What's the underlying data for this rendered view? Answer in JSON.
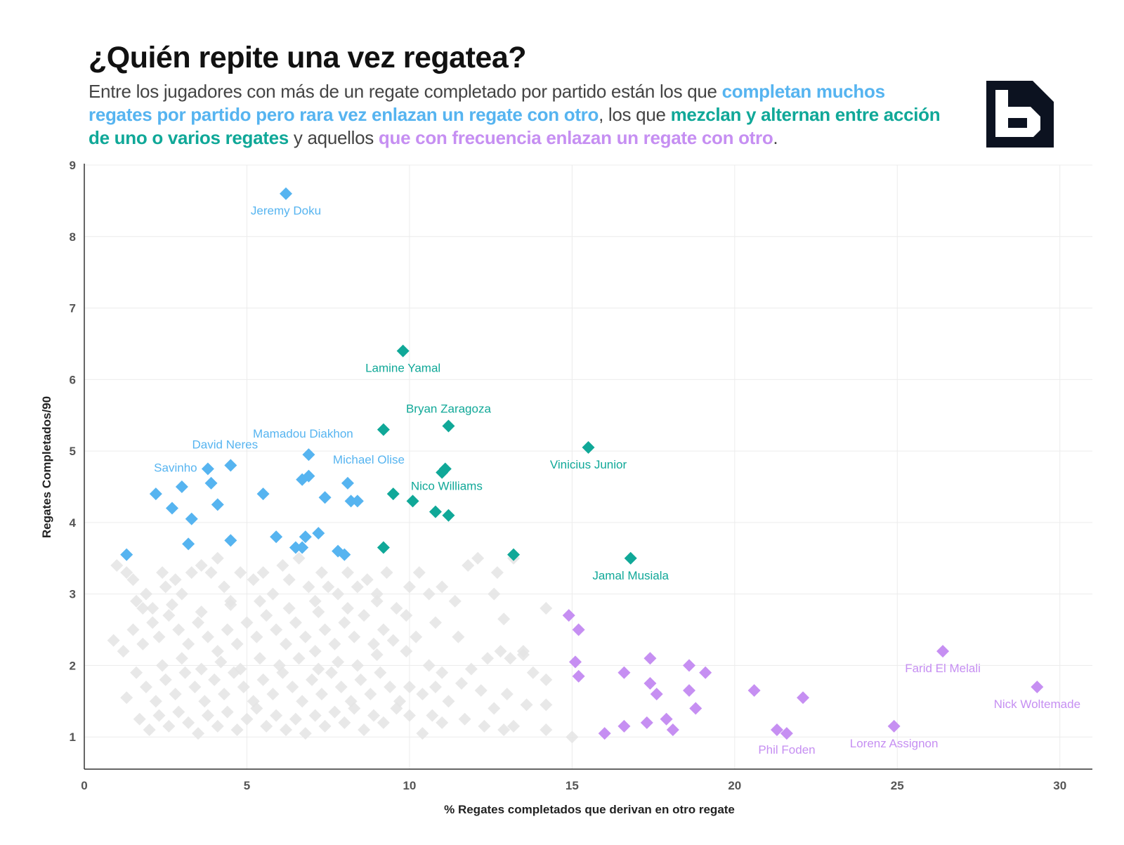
{
  "title": "¿Quién repite una vez regatea?",
  "subtitle": {
    "part1": "Entre los jugadores con más de un regate completado por partido están los que ",
    "hl1": "completan muchos regates por partido pero rara vez enlazan un regate con otro",
    "part2": ", los que ",
    "hl2": "mezclan y alternan entre acción de uno o varios regates",
    "part3": " y aquellos ",
    "hl3": "que con frecuencia enlazan un regate con otro",
    "part4": "."
  },
  "colors": {
    "blue": "#56b4f0",
    "teal": "#10a898",
    "purple": "#c68ff2",
    "gray": "#e4e4e4",
    "logo_bg": "#0c1220"
  },
  "chart_data": {
    "type": "scatter",
    "xlabel": "% Regates completados que derivan en  otro regate",
    "ylabel": "Regates Completados/90",
    "xlim": [
      0,
      31
    ],
    "ylim": [
      0.55,
      9.0
    ],
    "xticks": [
      0,
      5,
      10,
      15,
      20,
      25,
      30
    ],
    "yticks": [
      1,
      2,
      3,
      4,
      5,
      6,
      7,
      8,
      9
    ],
    "grid": true,
    "series": [
      {
        "color": "blue",
        "points": [
          {
            "x": 6.2,
            "y": 8.6,
            "label": "Jeremy Doku"
          },
          {
            "x": 6.9,
            "y": 4.95,
            "label": "Mamadou Diakhon"
          },
          {
            "x": 4.5,
            "y": 4.8,
            "label": "David Neres"
          },
          {
            "x": 3.8,
            "y": 4.75,
            "label": "Savinho"
          },
          {
            "x": 8.1,
            "y": 4.55,
            "label": "Michael Olise"
          },
          {
            "x": 6.9,
            "y": 4.65
          },
          {
            "x": 6.7,
            "y": 4.6
          },
          {
            "x": 2.2,
            "y": 4.4
          },
          {
            "x": 3.0,
            "y": 4.5
          },
          {
            "x": 3.9,
            "y": 4.55
          },
          {
            "x": 5.5,
            "y": 4.4
          },
          {
            "x": 7.4,
            "y": 4.35
          },
          {
            "x": 8.2,
            "y": 4.3
          },
          {
            "x": 8.4,
            "y": 4.3
          },
          {
            "x": 2.7,
            "y": 4.2
          },
          {
            "x": 4.1,
            "y": 4.25
          },
          {
            "x": 3.3,
            "y": 4.05
          },
          {
            "x": 4.5,
            "y": 3.75
          },
          {
            "x": 5.9,
            "y": 3.8
          },
          {
            "x": 6.8,
            "y": 3.8
          },
          {
            "x": 7.2,
            "y": 3.85
          },
          {
            "x": 6.5,
            "y": 3.65
          },
          {
            "x": 6.7,
            "y": 3.65
          },
          {
            "x": 3.2,
            "y": 3.7
          },
          {
            "x": 7.8,
            "y": 3.6
          },
          {
            "x": 8.0,
            "y": 3.55
          },
          {
            "x": 1.3,
            "y": 3.55
          }
        ]
      },
      {
        "color": "teal",
        "points": [
          {
            "x": 9.8,
            "y": 6.4,
            "label": "Lamine Yamal"
          },
          {
            "x": 11.2,
            "y": 5.35,
            "label": "Bryan Zaragoza"
          },
          {
            "x": 15.5,
            "y": 5.05,
            "label": "Vinicius Junior"
          },
          {
            "x": 11.1,
            "y": 4.75,
            "label": "Nico Williams"
          },
          {
            "x": 16.8,
            "y": 3.5,
            "label": "Jamal Musiala"
          },
          {
            "x": 9.2,
            "y": 5.3
          },
          {
            "x": 11.0,
            "y": 4.7
          },
          {
            "x": 9.5,
            "y": 4.4
          },
          {
            "x": 10.1,
            "y": 4.3
          },
          {
            "x": 10.8,
            "y": 4.15
          },
          {
            "x": 11.2,
            "y": 4.1
          },
          {
            "x": 9.2,
            "y": 3.65
          },
          {
            "x": 13.2,
            "y": 3.55
          }
        ]
      },
      {
        "color": "purple",
        "points": [
          {
            "x": 26.4,
            "y": 2.2,
            "label": "Farid El Melali"
          },
          {
            "x": 29.3,
            "y": 1.7,
            "label": "Nick Woltemade"
          },
          {
            "x": 21.3,
            "y": 1.1,
            "label": "Phil Foden"
          },
          {
            "x": 24.9,
            "y": 1.15,
            "label": "Lorenz Assignon"
          },
          {
            "x": 14.9,
            "y": 2.7
          },
          {
            "x": 15.2,
            "y": 2.5
          },
          {
            "x": 15.1,
            "y": 2.05
          },
          {
            "x": 15.2,
            "y": 1.85
          },
          {
            "x": 16.6,
            "y": 1.9
          },
          {
            "x": 17.4,
            "y": 2.1
          },
          {
            "x": 17.4,
            "y": 1.75
          },
          {
            "x": 17.6,
            "y": 1.6
          },
          {
            "x": 18.6,
            "y": 2.0
          },
          {
            "x": 19.1,
            "y": 1.9
          },
          {
            "x": 18.6,
            "y": 1.65
          },
          {
            "x": 18.8,
            "y": 1.4
          },
          {
            "x": 20.6,
            "y": 1.65
          },
          {
            "x": 22.1,
            "y": 1.55
          },
          {
            "x": 17.3,
            "y": 1.2
          },
          {
            "x": 17.9,
            "y": 1.25
          },
          {
            "x": 18.1,
            "y": 1.1
          },
          {
            "x": 16.6,
            "y": 1.15
          },
          {
            "x": 16.0,
            "y": 1.05
          },
          {
            "x": 21.6,
            "y": 1.05
          }
        ]
      },
      {
        "color": "gray",
        "points": [
          {
            "x": 1.0,
            "y": 3.4
          },
          {
            "x": 1.3,
            "y": 3.3
          },
          {
            "x": 1.5,
            "y": 3.2
          },
          {
            "x": 1.6,
            "y": 2.9
          },
          {
            "x": 1.9,
            "y": 3.0
          },
          {
            "x": 2.1,
            "y": 2.8
          },
          {
            "x": 2.4,
            "y": 3.3
          },
          {
            "x": 2.5,
            "y": 3.1
          },
          {
            "x": 2.8,
            "y": 3.2
          },
          {
            "x": 3.0,
            "y": 3.0
          },
          {
            "x": 3.3,
            "y": 3.3
          },
          {
            "x": 3.6,
            "y": 3.4
          },
          {
            "x": 3.9,
            "y": 3.3
          },
          {
            "x": 4.1,
            "y": 3.5
          },
          {
            "x": 4.3,
            "y": 3.1
          },
          {
            "x": 4.5,
            "y": 2.9
          },
          {
            "x": 4.8,
            "y": 3.3
          },
          {
            "x": 5.2,
            "y": 3.2
          },
          {
            "x": 5.5,
            "y": 3.3
          },
          {
            "x": 5.8,
            "y": 3.0
          },
          {
            "x": 6.1,
            "y": 3.4
          },
          {
            "x": 6.3,
            "y": 3.2
          },
          {
            "x": 6.6,
            "y": 3.5
          },
          {
            "x": 6.9,
            "y": 3.1
          },
          {
            "x": 7.1,
            "y": 2.9
          },
          {
            "x": 7.3,
            "y": 3.3
          },
          {
            "x": 7.5,
            "y": 3.1
          },
          {
            "x": 7.8,
            "y": 3.0
          },
          {
            "x": 8.1,
            "y": 3.3
          },
          {
            "x": 8.4,
            "y": 3.1
          },
          {
            "x": 8.7,
            "y": 3.2
          },
          {
            "x": 9.0,
            "y": 3.0
          },
          {
            "x": 9.3,
            "y": 3.3
          },
          {
            "x": 9.6,
            "y": 2.8
          },
          {
            "x": 10.0,
            "y": 3.1
          },
          {
            "x": 10.3,
            "y": 3.3
          },
          {
            "x": 10.6,
            "y": 3.0
          },
          {
            "x": 11.0,
            "y": 3.1
          },
          {
            "x": 11.4,
            "y": 2.9
          },
          {
            "x": 11.8,
            "y": 3.4
          },
          {
            "x": 12.1,
            "y": 3.5
          },
          {
            "x": 12.7,
            "y": 3.3
          },
          {
            "x": 12.6,
            "y": 3.0
          },
          {
            "x": 12.9,
            "y": 2.65
          },
          {
            "x": 14.2,
            "y": 2.8
          },
          {
            "x": 13.2,
            "y": 3.5
          },
          {
            "x": 0.9,
            "y": 2.35
          },
          {
            "x": 1.2,
            "y": 2.2
          },
          {
            "x": 1.5,
            "y": 2.5
          },
          {
            "x": 1.8,
            "y": 2.3
          },
          {
            "x": 2.1,
            "y": 2.6
          },
          {
            "x": 2.3,
            "y": 2.4
          },
          {
            "x": 2.6,
            "y": 2.7
          },
          {
            "x": 2.9,
            "y": 2.5
          },
          {
            "x": 3.2,
            "y": 2.3
          },
          {
            "x": 3.5,
            "y": 2.6
          },
          {
            "x": 3.8,
            "y": 2.4
          },
          {
            "x": 4.1,
            "y": 2.2
          },
          {
            "x": 4.4,
            "y": 2.5
          },
          {
            "x": 4.7,
            "y": 2.3
          },
          {
            "x": 5.0,
            "y": 2.6
          },
          {
            "x": 5.3,
            "y": 2.4
          },
          {
            "x": 5.6,
            "y": 2.7
          },
          {
            "x": 5.9,
            "y": 2.5
          },
          {
            "x": 6.2,
            "y": 2.3
          },
          {
            "x": 6.5,
            "y": 2.6
          },
          {
            "x": 6.8,
            "y": 2.4
          },
          {
            "x": 7.1,
            "y": 2.2
          },
          {
            "x": 7.4,
            "y": 2.5
          },
          {
            "x": 7.7,
            "y": 2.3
          },
          {
            "x": 8.0,
            "y": 2.6
          },
          {
            "x": 8.3,
            "y": 2.4
          },
          {
            "x": 8.6,
            "y": 2.7
          },
          {
            "x": 8.9,
            "y": 2.3
          },
          {
            "x": 9.2,
            "y": 2.5
          },
          {
            "x": 9.5,
            "y": 2.35
          },
          {
            "x": 9.9,
            "y": 2.2
          },
          {
            "x": 10.2,
            "y": 2.4
          },
          {
            "x": 10.6,
            "y": 2.0
          },
          {
            "x": 11.0,
            "y": 1.9
          },
          {
            "x": 11.5,
            "y": 2.4
          },
          {
            "x": 11.9,
            "y": 1.95
          },
          {
            "x": 12.4,
            "y": 2.1
          },
          {
            "x": 12.8,
            "y": 2.2
          },
          {
            "x": 13.1,
            "y": 2.1
          },
          {
            "x": 13.5,
            "y": 2.15
          },
          {
            "x": 13.8,
            "y": 1.9
          },
          {
            "x": 14.2,
            "y": 1.8
          },
          {
            "x": 12.2,
            "y": 1.65
          },
          {
            "x": 12.6,
            "y": 1.4
          },
          {
            "x": 1.3,
            "y": 1.55
          },
          {
            "x": 1.6,
            "y": 1.9
          },
          {
            "x": 1.9,
            "y": 1.7
          },
          {
            "x": 2.2,
            "y": 1.5
          },
          {
            "x": 2.5,
            "y": 1.8
          },
          {
            "x": 2.8,
            "y": 1.6
          },
          {
            "x": 3.1,
            "y": 1.9
          },
          {
            "x": 3.4,
            "y": 1.7
          },
          {
            "x": 3.7,
            "y": 1.5
          },
          {
            "x": 4.0,
            "y": 1.8
          },
          {
            "x": 4.3,
            "y": 1.6
          },
          {
            "x": 4.6,
            "y": 1.9
          },
          {
            "x": 4.9,
            "y": 1.7
          },
          {
            "x": 5.2,
            "y": 1.5
          },
          {
            "x": 5.5,
            "y": 1.8
          },
          {
            "x": 5.8,
            "y": 1.6
          },
          {
            "x": 6.1,
            "y": 1.9
          },
          {
            "x": 6.4,
            "y": 1.7
          },
          {
            "x": 6.7,
            "y": 1.5
          },
          {
            "x": 7.0,
            "y": 1.8
          },
          {
            "x": 7.3,
            "y": 1.6
          },
          {
            "x": 7.6,
            "y": 1.9
          },
          {
            "x": 7.9,
            "y": 1.7
          },
          {
            "x": 8.2,
            "y": 1.5
          },
          {
            "x": 8.5,
            "y": 1.8
          },
          {
            "x": 8.8,
            "y": 1.6
          },
          {
            "x": 9.1,
            "y": 1.9
          },
          {
            "x": 9.4,
            "y": 1.7
          },
          {
            "x": 9.7,
            "y": 1.5
          },
          {
            "x": 10.0,
            "y": 1.7
          },
          {
            "x": 10.4,
            "y": 1.6
          },
          {
            "x": 10.8,
            "y": 1.7
          },
          {
            "x": 11.2,
            "y": 1.5
          },
          {
            "x": 11.6,
            "y": 1.75
          },
          {
            "x": 13.0,
            "y": 1.6
          },
          {
            "x": 13.6,
            "y": 1.45
          },
          {
            "x": 14.2,
            "y": 1.45
          },
          {
            "x": 1.7,
            "y": 1.25
          },
          {
            "x": 2.0,
            "y": 1.1
          },
          {
            "x": 2.3,
            "y": 1.3
          },
          {
            "x": 2.6,
            "y": 1.15
          },
          {
            "x": 2.9,
            "y": 1.35
          },
          {
            "x": 3.2,
            "y": 1.2
          },
          {
            "x": 3.5,
            "y": 1.05
          },
          {
            "x": 3.8,
            "y": 1.3
          },
          {
            "x": 4.1,
            "y": 1.15
          },
          {
            "x": 4.4,
            "y": 1.35
          },
          {
            "x": 4.7,
            "y": 1.1
          },
          {
            "x": 5.0,
            "y": 1.25
          },
          {
            "x": 5.3,
            "y": 1.4
          },
          {
            "x": 5.6,
            "y": 1.15
          },
          {
            "x": 5.9,
            "y": 1.3
          },
          {
            "x": 6.2,
            "y": 1.1
          },
          {
            "x": 6.5,
            "y": 1.25
          },
          {
            "x": 6.8,
            "y": 1.05
          },
          {
            "x": 7.1,
            "y": 1.3
          },
          {
            "x": 7.4,
            "y": 1.15
          },
          {
            "x": 7.7,
            "y": 1.35
          },
          {
            "x": 8.0,
            "y": 1.2
          },
          {
            "x": 8.3,
            "y": 1.4
          },
          {
            "x": 8.6,
            "y": 1.1
          },
          {
            "x": 8.9,
            "y": 1.3
          },
          {
            "x": 9.2,
            "y": 1.2
          },
          {
            "x": 9.6,
            "y": 1.4
          },
          {
            "x": 10.0,
            "y": 1.3
          },
          {
            "x": 10.4,
            "y": 1.05
          },
          {
            "x": 10.7,
            "y": 1.3
          },
          {
            "x": 11.0,
            "y": 1.2
          },
          {
            "x": 11.7,
            "y": 1.25
          },
          {
            "x": 12.3,
            "y": 1.15
          },
          {
            "x": 12.9,
            "y": 1.1
          },
          {
            "x": 13.2,
            "y": 1.15
          },
          {
            "x": 14.2,
            "y": 1.1
          },
          {
            "x": 15.0,
            "y": 1.0
          },
          {
            "x": 2.4,
            "y": 2.0
          },
          {
            "x": 3.0,
            "y": 2.1
          },
          {
            "x": 3.6,
            "y": 1.95
          },
          {
            "x": 4.2,
            "y": 2.05
          },
          {
            "x": 4.8,
            "y": 1.95
          },
          {
            "x": 5.4,
            "y": 2.1
          },
          {
            "x": 6.0,
            "y": 2.0
          },
          {
            "x": 6.6,
            "y": 2.1
          },
          {
            "x": 7.2,
            "y": 1.95
          },
          {
            "x": 7.8,
            "y": 2.05
          },
          {
            "x": 8.4,
            "y": 2.0
          },
          {
            "x": 9.0,
            "y": 2.15
          },
          {
            "x": 1.8,
            "y": 2.8
          },
          {
            "x": 2.7,
            "y": 2.85
          },
          {
            "x": 3.6,
            "y": 2.75
          },
          {
            "x": 4.5,
            "y": 2.85
          },
          {
            "x": 5.4,
            "y": 2.9
          },
          {
            "x": 6.3,
            "y": 2.8
          },
          {
            "x": 7.2,
            "y": 2.75
          },
          {
            "x": 8.1,
            "y": 2.8
          },
          {
            "x": 9.0,
            "y": 2.9
          },
          {
            "x": 9.9,
            "y": 2.7
          },
          {
            "x": 10.8,
            "y": 2.6
          },
          {
            "x": 13.5,
            "y": 2.2
          }
        ]
      }
    ]
  }
}
